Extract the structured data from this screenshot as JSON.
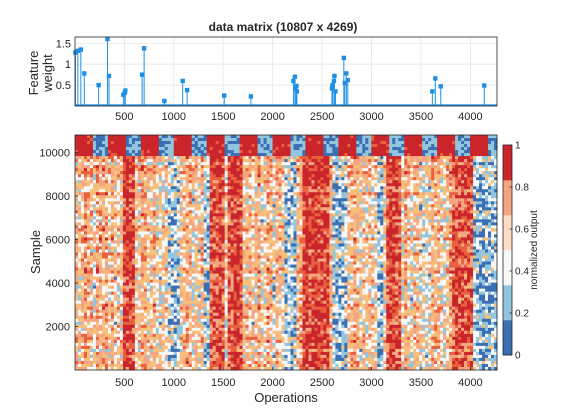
{
  "chart_data": [
    {
      "type": "stem",
      "title": "data matrix (10807 x 4269)",
      "xlabel": "",
      "ylabel_line1": "Feature",
      "ylabel_line2": "weight",
      "xlim": [
        1,
        4269
      ],
      "ylim": [
        0,
        1.65
      ],
      "xticks": [
        500,
        1000,
        1500,
        2000,
        2500,
        3000,
        3500,
        4000
      ],
      "yticks": [
        {
          "value": 0.5,
          "label": "0.5"
        },
        {
          "value": 1.0,
          "label": "1"
        },
        {
          "value": 1.5,
          "label": "1.5"
        }
      ],
      "grid": true,
      "color": "#1f8fe6",
      "x": [
        5,
        30,
        60,
        95,
        240,
        330,
        345,
        680,
        700,
        490,
        505,
        510,
        905,
        1090,
        1135,
        1510,
        1780,
        2210,
        2225,
        2230,
        2240,
        2245,
        2600,
        2605,
        2620,
        2625,
        2635,
        2720,
        2730,
        2745,
        2760,
        3615,
        3645,
        3700,
        4140
      ],
      "y": [
        1.28,
        1.32,
        1.35,
        0.78,
        0.5,
        1.6,
        0.72,
        0.75,
        1.38,
        0.27,
        0.32,
        0.37,
        0.12,
        0.6,
        0.38,
        0.25,
        0.23,
        0.6,
        0.7,
        0.42,
        0.48,
        0.35,
        0.42,
        0.5,
        0.6,
        0.72,
        0.35,
        1.15,
        0.55,
        0.78,
        0.62,
        0.35,
        0.66,
        0.47,
        0.49
      ]
    },
    {
      "type": "heatmap",
      "title": "",
      "xlabel": "Operations",
      "ylabel": "Sample",
      "xlim": [
        1,
        4269
      ],
      "ylim": [
        1,
        10807
      ],
      "xticks": [
        500,
        1000,
        1500,
        2000,
        2500,
        3000,
        3500,
        4000
      ],
      "yticks": [
        2000,
        4000,
        6000,
        8000,
        10000
      ],
      "colormap": [
        "#3b6fb4",
        "#92c5de",
        "#f7f7f7",
        "#f7c07a",
        "#f4a582",
        "#e9603f",
        "#c9252b"
      ],
      "dominant_red_columns": [
        [
          490,
          600
        ],
        [
          1370,
          1500
        ],
        [
          1550,
          1700
        ],
        [
          2290,
          2580
        ],
        [
          3140,
          3290
        ],
        [
          3830,
          4050
        ]
      ],
      "dominant_blue_columns": [
        [
          950,
          1050
        ],
        [
          1290,
          1360
        ],
        [
          2110,
          2240
        ],
        [
          2590,
          2750
        ],
        [
          3060,
          3130
        ],
        [
          4040,
          4269
        ]
      ],
      "colorbar": {
        "label": "normalized output",
        "range": [
          0,
          1
        ],
        "ticks": [
          "0",
          "0.2",
          "0.4",
          "0.6",
          "0.8",
          "1"
        ],
        "colors": [
          "#3b6fb4",
          "#92c5de",
          "#f7f7f7",
          "#fddbc7",
          "#f4a582",
          "#c9252b"
        ]
      }
    }
  ]
}
